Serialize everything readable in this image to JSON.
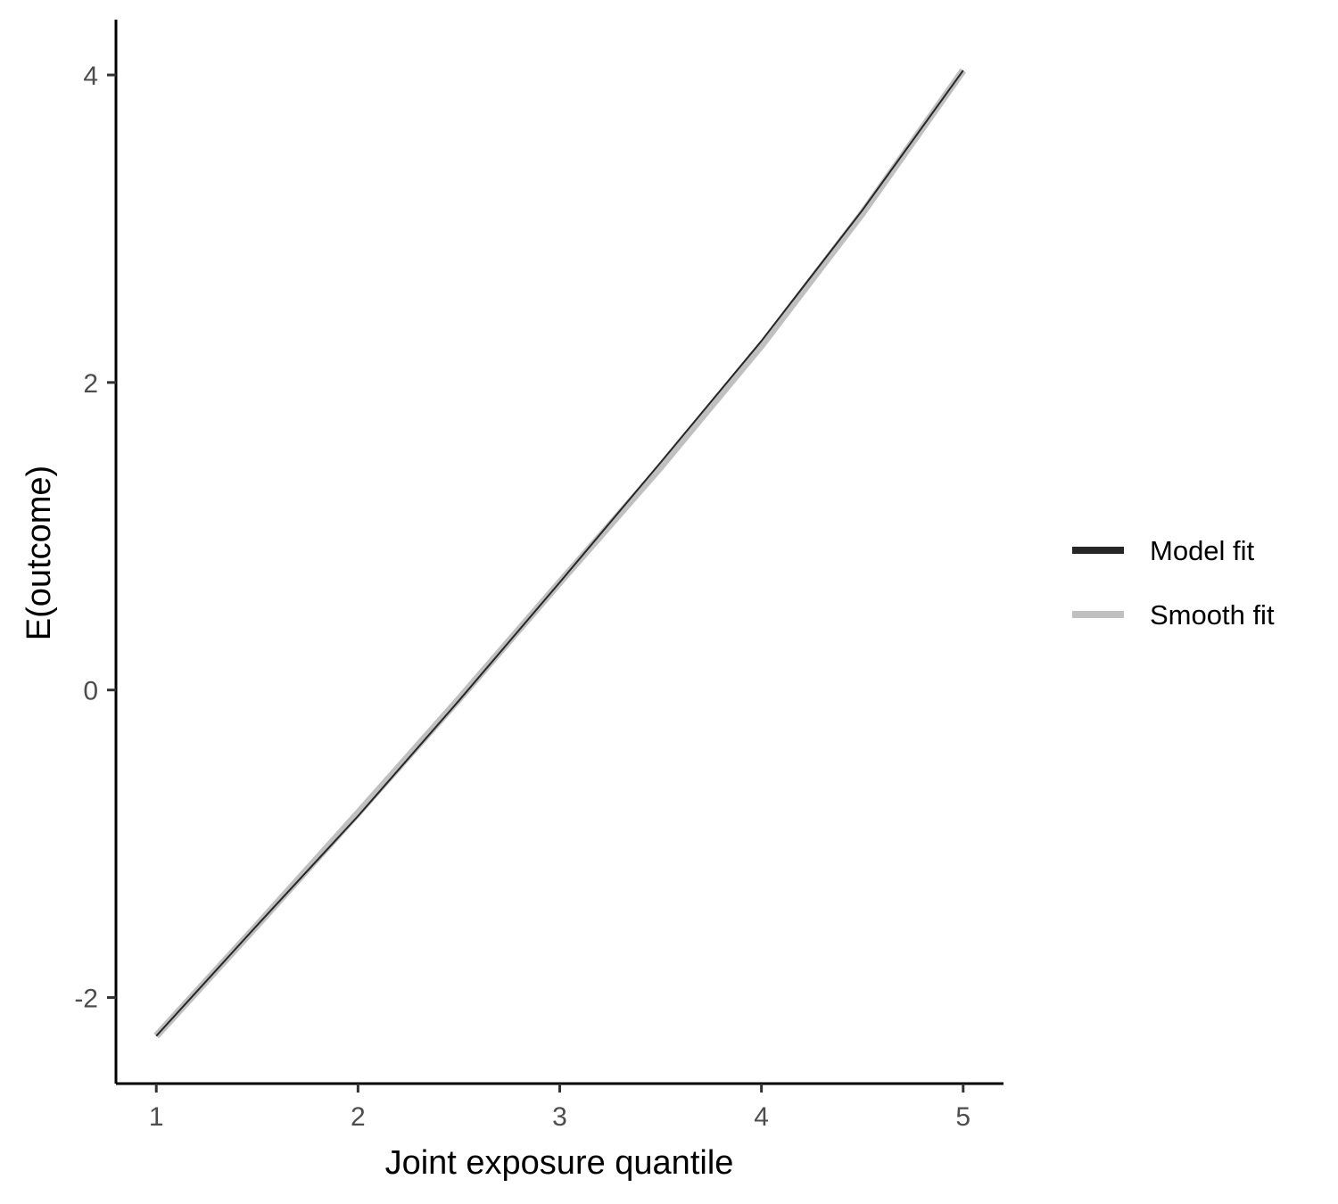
{
  "chart_data": {
    "type": "line",
    "title": "",
    "xlabel": "Joint exposure quantile",
    "ylabel": "E(outcome)",
    "xlim": [
      0.8,
      5.2
    ],
    "ylim": [
      -2.56,
      4.36
    ],
    "x_ticks": [
      1,
      2,
      3,
      4,
      5
    ],
    "y_ticks": [
      -2,
      0,
      2,
      4
    ],
    "grid": false,
    "legend_position": "right",
    "series": [
      {
        "name": "Model fit",
        "color": "#262626",
        "x": [
          1,
          1.5,
          2,
          2.5,
          3,
          3.5,
          4,
          4.5,
          5
        ],
        "y": [
          -2.25,
          -1.53,
          -0.82,
          -0.07,
          0.7,
          1.48,
          2.27,
          3.12,
          4.03
        ]
      },
      {
        "name": "Smooth fit",
        "color": "#c0c0c0",
        "x": [
          1,
          1.5,
          2,
          2.5,
          3,
          3.5,
          4,
          4.5,
          5
        ],
        "y": [
          -2.25,
          -1.53,
          -0.8,
          -0.06,
          0.7,
          1.45,
          2.24,
          3.1,
          4.03
        ]
      }
    ]
  }
}
